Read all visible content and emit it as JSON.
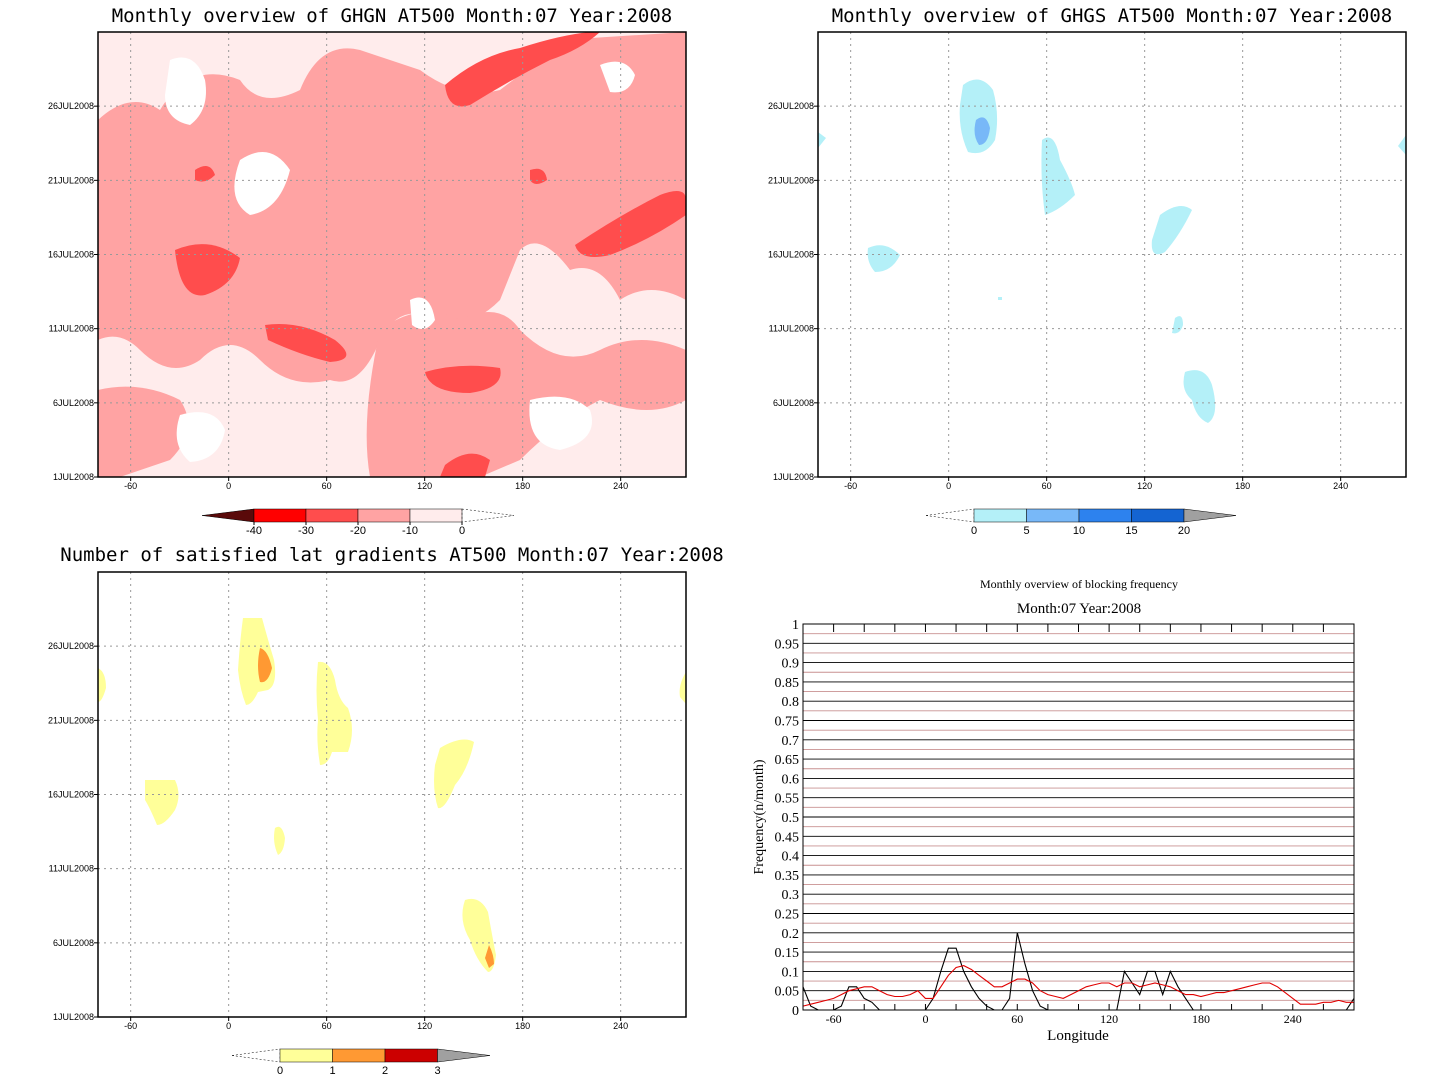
{
  "chart_data": [
    {
      "type": "heatmap",
      "title": "Monthly overview of GHGN AT500 Month:07 Year:2008",
      "x_ticks": [
        "-60",
        "0",
        "60",
        "120",
        "180",
        "240"
      ],
      "y_ticks": [
        "1JUL2008",
        "6JUL2008",
        "11JUL2008",
        "16JUL2008",
        "21JUL2008",
        "26JUL2008"
      ],
      "xlim": [
        -80,
        280
      ],
      "ylim": [
        1,
        31
      ],
      "grid": true,
      "colorbar": {
        "labels": [
          "-40",
          "-30",
          "-20",
          "-10",
          "0"
        ],
        "colors": [
          "#5a0a0a",
          "#ff0000",
          "#ff4d4d",
          "#ffa3a3",
          "#ffecec"
        ]
      }
    },
    {
      "type": "heatmap",
      "title": "Monthly overview of GHGS AT500 Month:07 Year:2008",
      "x_ticks": [
        "-60",
        "0",
        "60",
        "120",
        "180",
        "240"
      ],
      "y_ticks": [
        "1JUL2008",
        "6JUL2008",
        "11JUL2008",
        "16JUL2008",
        "21JUL2008",
        "26JUL2008"
      ],
      "xlim": [
        -80,
        280
      ],
      "ylim": [
        1,
        31
      ],
      "grid": true,
      "colorbar": {
        "labels": [
          "0",
          "5",
          "10",
          "15",
          "20"
        ],
        "colors": [
          "#b4f0f8",
          "#78b8f8",
          "#2d82ee",
          "#1464d2",
          "#a0a0a0"
        ]
      }
    },
    {
      "type": "heatmap",
      "title": "Number of satisfied lat gradients AT500 Month:07 Year:2008",
      "x_ticks": [
        "-60",
        "0",
        "60",
        "120",
        "180",
        "240"
      ],
      "y_ticks": [
        "1JUL2008",
        "6JUL2008",
        "11JUL2008",
        "16JUL2008",
        "21JUL2008",
        "26JUL2008"
      ],
      "xlim": [
        -80,
        280
      ],
      "ylim": [
        1,
        31
      ],
      "grid": true,
      "colorbar": {
        "labels": [
          "0",
          "1",
          "2",
          "3"
        ],
        "colors": [
          "#ffff99",
          "#ff9933",
          "#cc0000",
          "#a0a0a0"
        ]
      }
    },
    {
      "type": "line",
      "title": "Monthly overview of blocking frequency",
      "subtitle": "Month:07 Year:2008",
      "xlabel": "Longitude",
      "ylabel": "Frequency(n/month)",
      "xlim": [
        -80,
        280
      ],
      "ylim": [
        0,
        1
      ],
      "x_ticks": [
        "-60",
        "0",
        "60",
        "120",
        "180",
        "240"
      ],
      "y_ticks": [
        "0",
        "0.05",
        "0.1",
        "0.15",
        "0.2",
        "0.25",
        "0.3",
        "0.35",
        "0.4",
        "0.45",
        "0.5",
        "0.55",
        "0.6",
        "0.65",
        "0.7",
        "0.75",
        "0.8",
        "0.85",
        "0.9",
        "0.95",
        "1"
      ],
      "series": [
        {
          "color": "#000000",
          "x": [
            -80,
            -75,
            -70,
            -65,
            -60,
            -55,
            -50,
            -45,
            -40,
            -35,
            -30,
            -25,
            -20,
            -15,
            -10,
            -5,
            0,
            5,
            10,
            15,
            20,
            25,
            30,
            35,
            40,
            45,
            50,
            55,
            60,
            65,
            70,
            75,
            80,
            85,
            90,
            95,
            100,
            105,
            110,
            115,
            120,
            125,
            130,
            135,
            140,
            145,
            150,
            155,
            160,
            165,
            170,
            175,
            180,
            185,
            190,
            195,
            200,
            205,
            210,
            215,
            220,
            225,
            230,
            235,
            240,
            245,
            250,
            255,
            260,
            265,
            270,
            275,
            280
          ],
          "y": [
            0.06,
            0.01,
            0,
            0,
            0,
            0.01,
            0.06,
            0.06,
            0.03,
            0.02,
            0,
            0,
            0,
            0,
            0,
            0,
            0,
            0.03,
            0.1,
            0.16,
            0.16,
            0.1,
            0.06,
            0.03,
            0.01,
            0,
            0,
            0.03,
            0.2,
            0.12,
            0.05,
            0.01,
            0,
            0,
            0,
            0,
            0,
            0,
            0,
            0,
            0,
            0,
            0.1,
            0.07,
            0.04,
            0.1,
            0.1,
            0.04,
            0.1,
            0.06,
            0.03,
            0,
            0,
            0,
            0,
            0,
            0,
            0,
            0,
            0,
            0,
            0,
            0,
            0,
            0,
            0,
            0,
            0,
            0,
            0,
            0,
            0,
            0.03
          ]
        },
        {
          "color": "#e00000",
          "x": [
            -80,
            -75,
            -70,
            -65,
            -60,
            -55,
            -50,
            -45,
            -40,
            -35,
            -30,
            -25,
            -20,
            -15,
            -10,
            -5,
            0,
            5,
            10,
            15,
            20,
            25,
            30,
            35,
            40,
            45,
            50,
            55,
            60,
            65,
            70,
            75,
            80,
            85,
            90,
            95,
            100,
            105,
            110,
            115,
            120,
            125,
            130,
            135,
            140,
            145,
            150,
            155,
            160,
            165,
            170,
            175,
            180,
            185,
            190,
            195,
            200,
            205,
            210,
            215,
            220,
            225,
            230,
            235,
            240,
            245,
            250,
            255,
            260,
            265,
            270,
            275,
            280
          ],
          "y": [
            0.01,
            0.015,
            0.02,
            0.025,
            0.03,
            0.04,
            0.05,
            0.055,
            0.06,
            0.06,
            0.05,
            0.04,
            0.035,
            0.035,
            0.04,
            0.05,
            0.03,
            0.03,
            0.06,
            0.09,
            0.11,
            0.115,
            0.105,
            0.09,
            0.075,
            0.06,
            0.06,
            0.07,
            0.08,
            0.08,
            0.07,
            0.05,
            0.04,
            0.035,
            0.03,
            0.04,
            0.05,
            0.06,
            0.065,
            0.07,
            0.07,
            0.06,
            0.07,
            0.07,
            0.06,
            0.065,
            0.07,
            0.065,
            0.06,
            0.05,
            0.04,
            0.04,
            0.035,
            0.04,
            0.045,
            0.045,
            0.05,
            0.055,
            0.06,
            0.065,
            0.07,
            0.07,
            0.06,
            0.045,
            0.03,
            0.015,
            0.015,
            0.015,
            0.02,
            0.02,
            0.025,
            0.02,
            0.02
          ]
        }
      ]
    }
  ]
}
